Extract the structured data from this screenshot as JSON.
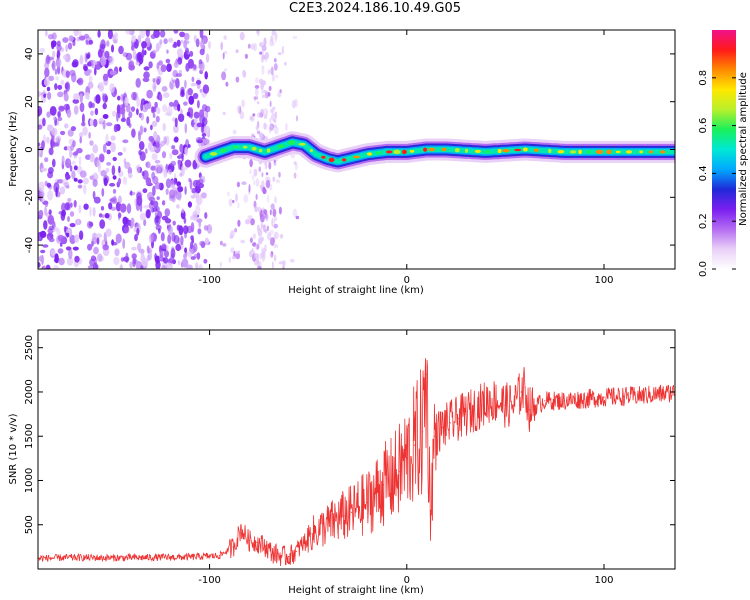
{
  "title": "C2E3.2024.186.10.49.G05",
  "chart_data": [
    {
      "type": "heatmap",
      "xlabel": "Height of straight line (km)",
      "ylabel": "Frequency (Hz)",
      "xlim": [
        -187,
        136
      ],
      "ylim": [
        -50,
        50
      ],
      "x_ticks": [
        -100,
        0,
        100
      ],
      "y_ticks": [
        -40,
        -20,
        0,
        20,
        40
      ],
      "colorbar": {
        "label": "Normalized spectral amplitude",
        "range": [
          0,
          1
        ],
        "ticks": [
          0.0,
          0.2,
          0.4,
          0.6,
          0.8
        ],
        "tick_labels": [
          "0.0",
          "0.2",
          "0.4",
          "0.6",
          "0.8"
        ],
        "colormap": [
          "#ffffff",
          "#e9d0f7",
          "#b46cf2",
          "#7a1ff0",
          "#1f2ad8",
          "#00a8ff",
          "#00e8d6",
          "#19f05a",
          "#b8f02c",
          "#ffe800",
          "#ff8a00",
          "#ff1a1a",
          "#f0108a"
        ]
      },
      "ridge": {
        "x": [
          -102,
          -95,
          -88,
          -80,
          -72,
          -65,
          -58,
          -52,
          -46,
          -40,
          -35,
          -30,
          -25,
          -20,
          -10,
          0,
          10,
          20,
          40,
          60,
          80,
          100,
          120,
          136
        ],
        "y": [
          -3,
          -1,
          1,
          1,
          -1,
          1,
          3,
          2,
          -2,
          -4,
          -5,
          -4,
          -3,
          -2,
          -1,
          -1,
          0,
          0,
          -1,
          0,
          -1,
          -1,
          -1,
          -1
        ]
      },
      "noise_region_x": [
        -187,
        -100
      ]
    },
    {
      "type": "line",
      "xlabel": "Height of straight line (km)",
      "ylabel": "SNR (10 * v/v)",
      "xlim": [
        -187,
        136
      ],
      "ylim": [
        0,
        2700
      ],
      "x_ticks": [
        -100,
        0,
        100
      ],
      "y_ticks": [
        500,
        1000,
        1500,
        2000,
        2500
      ],
      "color": "#ee3333",
      "series": {
        "x": [
          -187,
          -170,
          -150,
          -130,
          -110,
          -95,
          -88,
          -84,
          -80,
          -76,
          -72,
          -68,
          -64,
          -60,
          -56,
          -52,
          -48,
          -44,
          -40,
          -36,
          -32,
          -28,
          -24,
          -20,
          -16,
          -12,
          -8,
          -4,
          0,
          4,
          8,
          10,
          12,
          14,
          18,
          22,
          26,
          30,
          34,
          38,
          42,
          46,
          50,
          54,
          58,
          60,
          62,
          66,
          70,
          80,
          90,
          100,
          110,
          120,
          130,
          136
        ],
        "y": [
          120,
          130,
          125,
          130,
          135,
          150,
          250,
          450,
          320,
          300,
          260,
          180,
          150,
          140,
          200,
          300,
          400,
          450,
          500,
          550,
          600,
          640,
          700,
          750,
          850,
          950,
          1000,
          1100,
          1250,
          1400,
          1550,
          2200,
          600,
          1500,
          1600,
          1650,
          1700,
          1750,
          1800,
          1850,
          1900,
          1900,
          1850,
          1850,
          2000,
          2050,
          1800,
          1850,
          1900,
          1900,
          1920,
          1940,
          1950,
          1960,
          1980,
          2000
        ]
      }
    }
  ]
}
